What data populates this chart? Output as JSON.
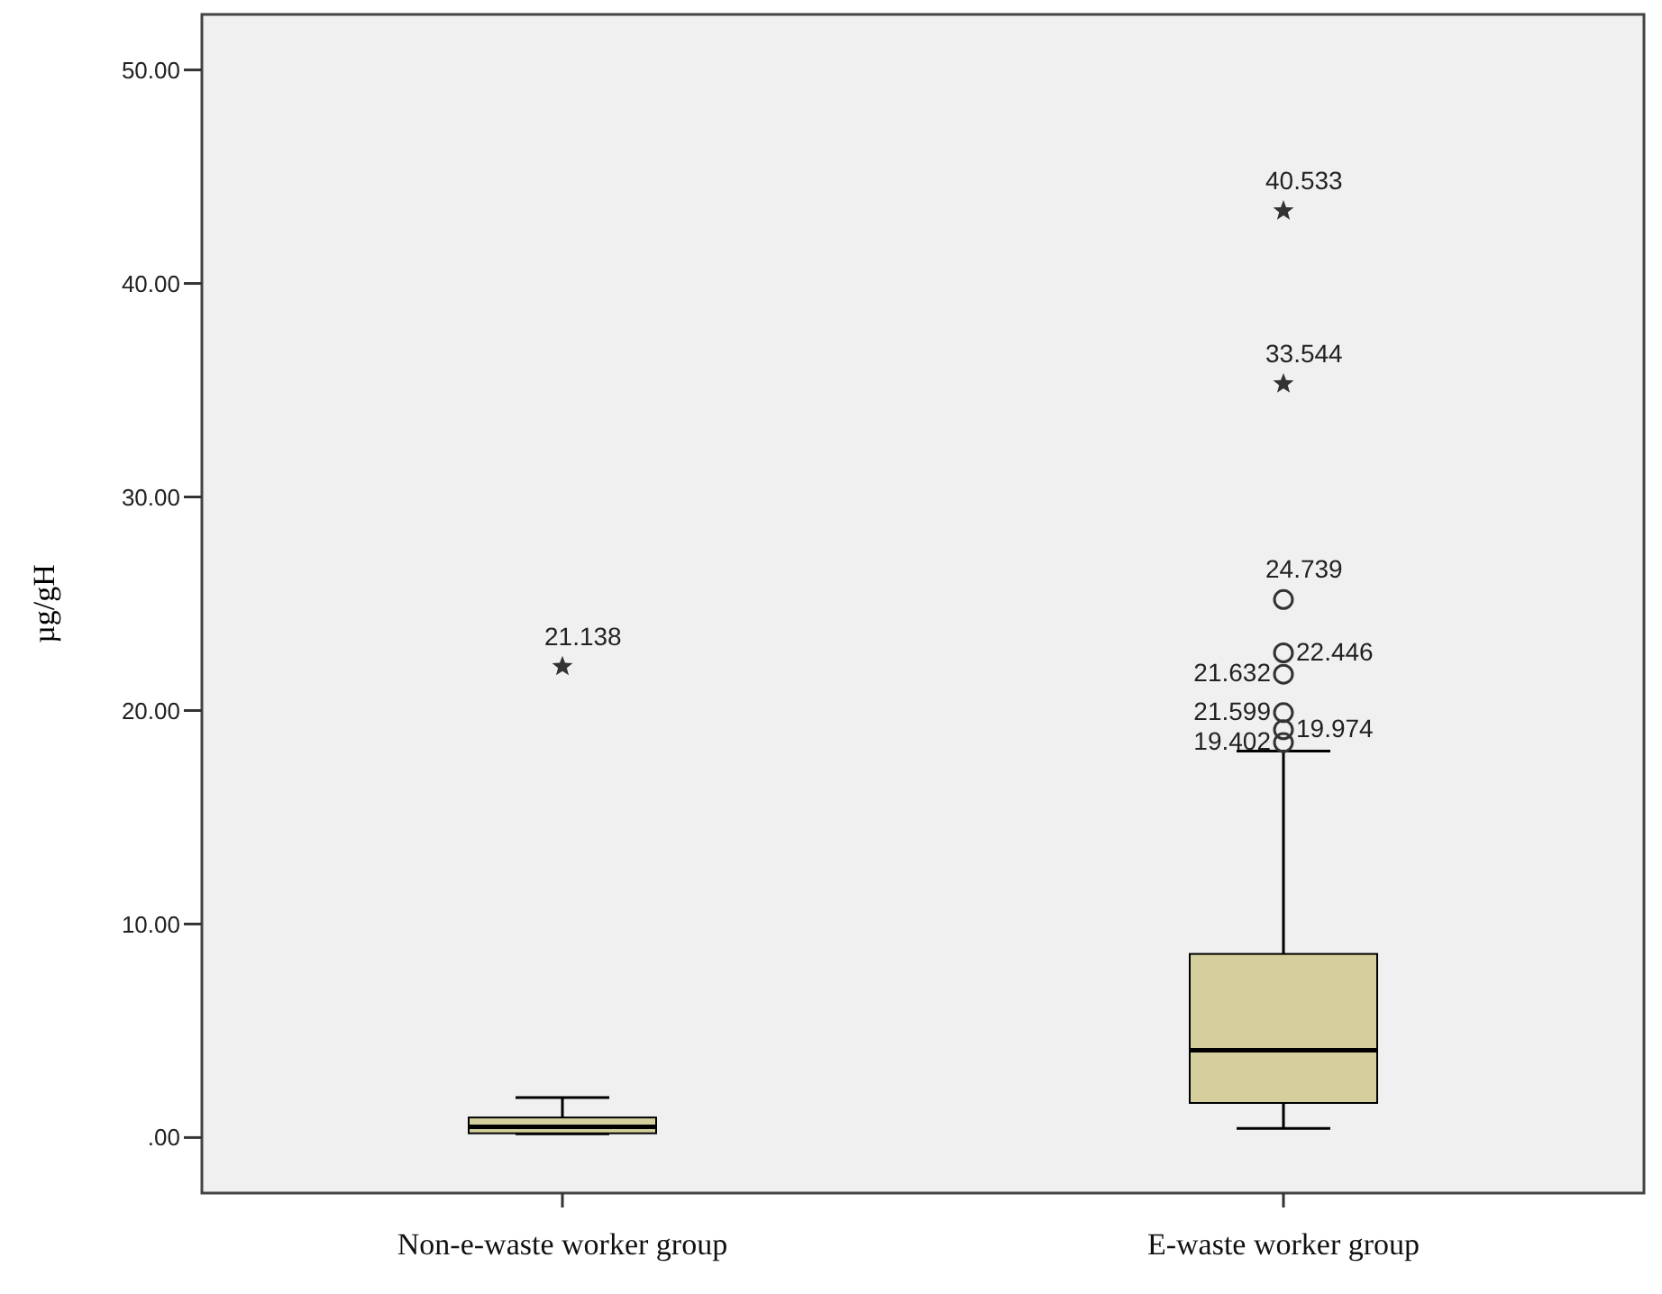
{
  "chart_data": {
    "type": "box",
    "ylabel": "µg/gH",
    "categories": [
      "Non-e-waste worker group",
      "E-waste worker group"
    ],
    "color": "#d4cf9c",
    "boxes": [
      {
        "low": 0.17,
        "q1": 0.2,
        "median": 0.5,
        "q3": 0.94,
        "high": 1.87,
        "outliers": [
          22.06
        ]
      },
      {
        "low": 0.43,
        "q1": 1.62,
        "median": 4.09,
        "q3": 8.6,
        "high": 18.1,
        "outliers": [
          43.4,
          35.3,
          25.2,
          22.7,
          21.7,
          19.9,
          19.1,
          18.5
        ]
      }
    ],
    "ylim": [
      -2.6,
      52.6
    ],
    "yticks": [
      {
        "value": 0,
        "label": ".00"
      },
      {
        "value": 10,
        "label": "10.00"
      },
      {
        "value": 20,
        "label": "20.00"
      },
      {
        "value": 30,
        "label": "30.00"
      },
      {
        "value": 40,
        "label": "40.00"
      },
      {
        "value": 50,
        "label": "50.00"
      }
    ],
    "annotations": [
      "21.138",
      "40.533",
      "33.544",
      "24.739",
      "22.446",
      "21.632",
      "21.599",
      "19.974",
      "19.402"
    ]
  }
}
